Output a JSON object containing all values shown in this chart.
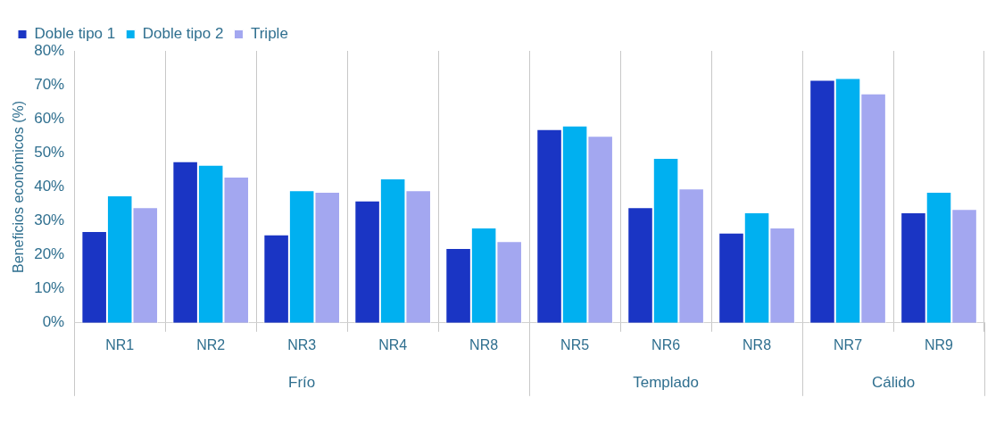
{
  "chart_data": {
    "type": "bar",
    "ylabel": "Beneficios económicos (%)",
    "categories": [
      "NR1",
      "NR2",
      "NR3",
      "NR4",
      "NR8",
      "NR5",
      "NR6",
      "NR8",
      "NR7",
      "NR9"
    ],
    "series": [
      {
        "name": "Doble tipo 1",
        "color": "#1a35c4",
        "values": [
          27,
          47.5,
          26,
          36,
          22,
          57,
          34,
          26.5,
          71.5,
          32.5
        ]
      },
      {
        "name": "Doble tipo 2",
        "color": "#00b0f0",
        "values": [
          37.5,
          46.5,
          39,
          42.5,
          28,
          58,
          48.5,
          32.5,
          72,
          38.5
        ]
      },
      {
        "name": "Triple",
        "color": "#a3a7f0",
        "values": [
          34,
          43,
          38.5,
          39,
          24,
          55,
          39.5,
          28,
          67.5,
          33.5
        ]
      }
    ],
    "ylim": [
      0,
      80
    ],
    "yticks": [
      {
        "value": 0,
        "label": "0%"
      },
      {
        "value": 10,
        "label": "10%"
      },
      {
        "value": 20,
        "label": "20%"
      },
      {
        "value": 30,
        "label": "30%"
      },
      {
        "value": 40,
        "label": "40%"
      },
      {
        "value": 50,
        "label": "50%"
      },
      {
        "value": 60,
        "label": "60%"
      },
      {
        "value": 70,
        "label": "70%"
      },
      {
        "value": 80,
        "label": "80%"
      }
    ],
    "grid": "x",
    "legend": "top left",
    "annotations": [
      "Frío",
      "Templado",
      "Cálido"
    ]
  }
}
